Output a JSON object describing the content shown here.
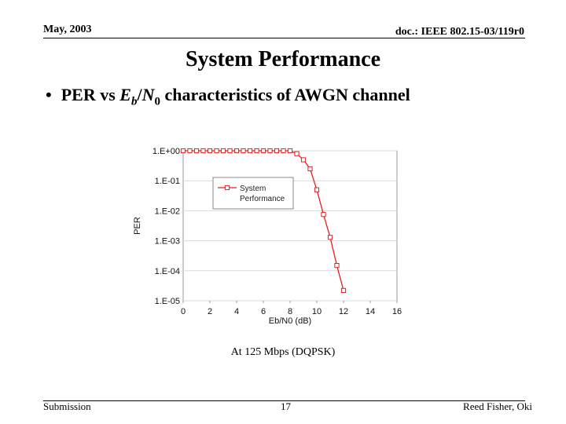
{
  "header": {
    "date": "May, 2003",
    "doc_id": "doc.: IEEE 802.15-03/119r0"
  },
  "title": "System Performance",
  "bullet": {
    "prefix": "PER vs ",
    "eb": "E",
    "eb_sub": "b",
    "slash": "/",
    "n0": "N",
    "n0_sub": "0",
    "suffix": " characteristics of AWGN channel"
  },
  "caption": "At 125 Mbps (DQPSK)",
  "footer": {
    "left": "Submission",
    "page": "17",
    "right": "Reed Fisher, Oki"
  },
  "colors": {
    "series": "#dd2222",
    "grid": "#d9d9d9",
    "axis": "#999999"
  },
  "chart_data": {
    "type": "line",
    "xlabel": "Eb/N0 (dB)",
    "ylabel": "PER",
    "yscale": "log",
    "xlim": [
      0,
      16
    ],
    "ylim": [
      1e-05,
      1
    ],
    "x_ticks": [
      0,
      2,
      4,
      6,
      8,
      10,
      12,
      14,
      16
    ],
    "y_ticks": [
      {
        "value": 1,
        "label": "1.E+00"
      },
      {
        "value": 0.1,
        "label": "1.E-01"
      },
      {
        "value": 0.01,
        "label": "1.E-02"
      },
      {
        "value": 0.001,
        "label": "1.E-03"
      },
      {
        "value": 0.0001,
        "label": "1.E-04"
      },
      {
        "value": 1e-05,
        "label": "1.E-05"
      }
    ],
    "grid": "horizontal",
    "legend": {
      "position": "upper-left inside plot",
      "lines": [
        "System",
        "Performance"
      ]
    },
    "series": [
      {
        "name": "System Performance",
        "marker": "square",
        "x": [
          0,
          0.5,
          1,
          1.5,
          2,
          2.5,
          3,
          3.5,
          4,
          4.5,
          5,
          5.5,
          6,
          6.5,
          7,
          7.5,
          8,
          8.5,
          9,
          9.5,
          10,
          10.5,
          11,
          11.5,
          12
        ],
        "y": [
          1,
          1,
          1,
          1,
          1,
          1,
          1,
          1,
          1,
          1,
          1,
          1,
          1,
          1,
          1,
          1,
          1,
          0.8,
          0.5,
          0.25,
          0.05,
          0.0075,
          0.0013,
          0.00015,
          2.2e-05
        ]
      }
    ]
  }
}
